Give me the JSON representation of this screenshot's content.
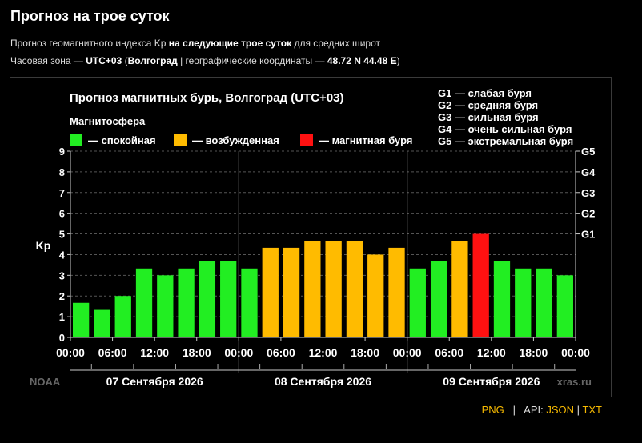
{
  "page": {
    "title": "Прогноз на трое суток",
    "subtitle_pre": "Прогноз геомагнитного индекса Kp ",
    "subtitle_bold": "на следующие трое суток",
    "subtitle_post": " для средних широт",
    "tz_prefix": "Часовая зона — ",
    "tz_value": "UTC+03",
    "city_open": " (",
    "city": "Волгоград",
    "coords_label": " | географические координаты — ",
    "coords": "48.72 N 44.48 E",
    "coords_close": ")"
  },
  "links": {
    "png": "PNG",
    "sep1": "|",
    "api_label": "API:",
    "json": "JSON",
    "sep2": "|",
    "txt": "TXT"
  },
  "colors": {
    "quiet": "#22ee22",
    "active": "#ffbb00",
    "storm": "#ff1111",
    "background": "#000000",
    "text": "#ffffff"
  },
  "chart_data": {
    "type": "bar",
    "title": "Прогноз магнитных бурь, Волгоград (UTC+03)",
    "ylabel": "Kp",
    "ylim": [
      0,
      9
    ],
    "y_ticks": [
      "0",
      "1",
      "2",
      "3",
      "4",
      "5",
      "6",
      "7",
      "8",
      "9"
    ],
    "g_scale": [
      {
        "label": "G1",
        "kp": 5
      },
      {
        "label": "G2",
        "kp": 6
      },
      {
        "label": "G3",
        "kp": 7
      },
      {
        "label": "G4",
        "kp": 8
      },
      {
        "label": "G5",
        "kp": 9
      }
    ],
    "g_legend": [
      "G1 — слабая буря",
      "G2 — средняя буря",
      "G3 — сильная буря",
      "G4 — очень сильная буря",
      "G5 — экстремальная буря"
    ],
    "magnetosphere_title": "Магнитосфера",
    "legend": [
      {
        "label": "— спокойная",
        "color": "#22ee22"
      },
      {
        "label": "— возбужденная",
        "color": "#ffbb00"
      },
      {
        "label": "— магнитная буря",
        "color": "#ff1111"
      }
    ],
    "x_ticks": [
      "00:00",
      "06:00",
      "12:00",
      "18:00",
      "00:00",
      "06:00",
      "12:00",
      "18:00",
      "00:00",
      "06:00",
      "12:00",
      "18:00",
      "00:00"
    ],
    "days": [
      "07 Сентября 2026",
      "08 Сентября 2026",
      "09 Сентября 2026"
    ],
    "values": [
      1.67,
      1.33,
      2.0,
      3.33,
      3.0,
      3.33,
      3.67,
      3.67,
      3.33,
      4.33,
      4.33,
      4.67,
      4.67,
      4.67,
      4.0,
      4.33,
      3.33,
      3.67,
      4.67,
      5.0,
      3.67,
      3.33,
      3.33,
      3.0
    ],
    "watermark_left": "NOAA",
    "watermark_right": "xras.ru"
  }
}
